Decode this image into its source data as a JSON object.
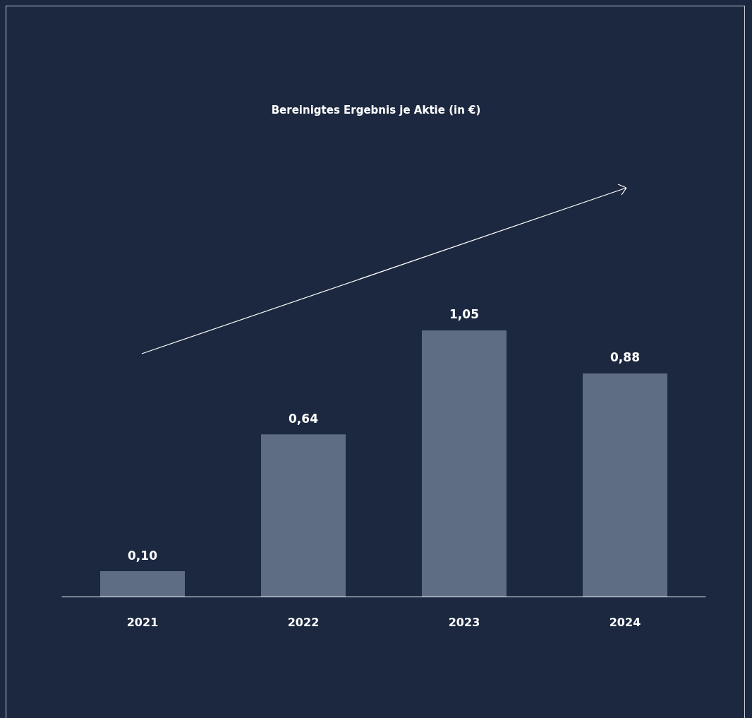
{
  "chart_data": {
    "type": "bar",
    "title": "Bereinigtes Ergebnis je Aktie (in €)",
    "categories": [
      "2021",
      "2022",
      "2023",
      "2024"
    ],
    "values": [
      0.1,
      0.64,
      1.05,
      0.88
    ],
    "value_labels": [
      "0,10",
      "0,64",
      "1,05",
      "0,88"
    ],
    "color": "#5e6d84"
  }
}
